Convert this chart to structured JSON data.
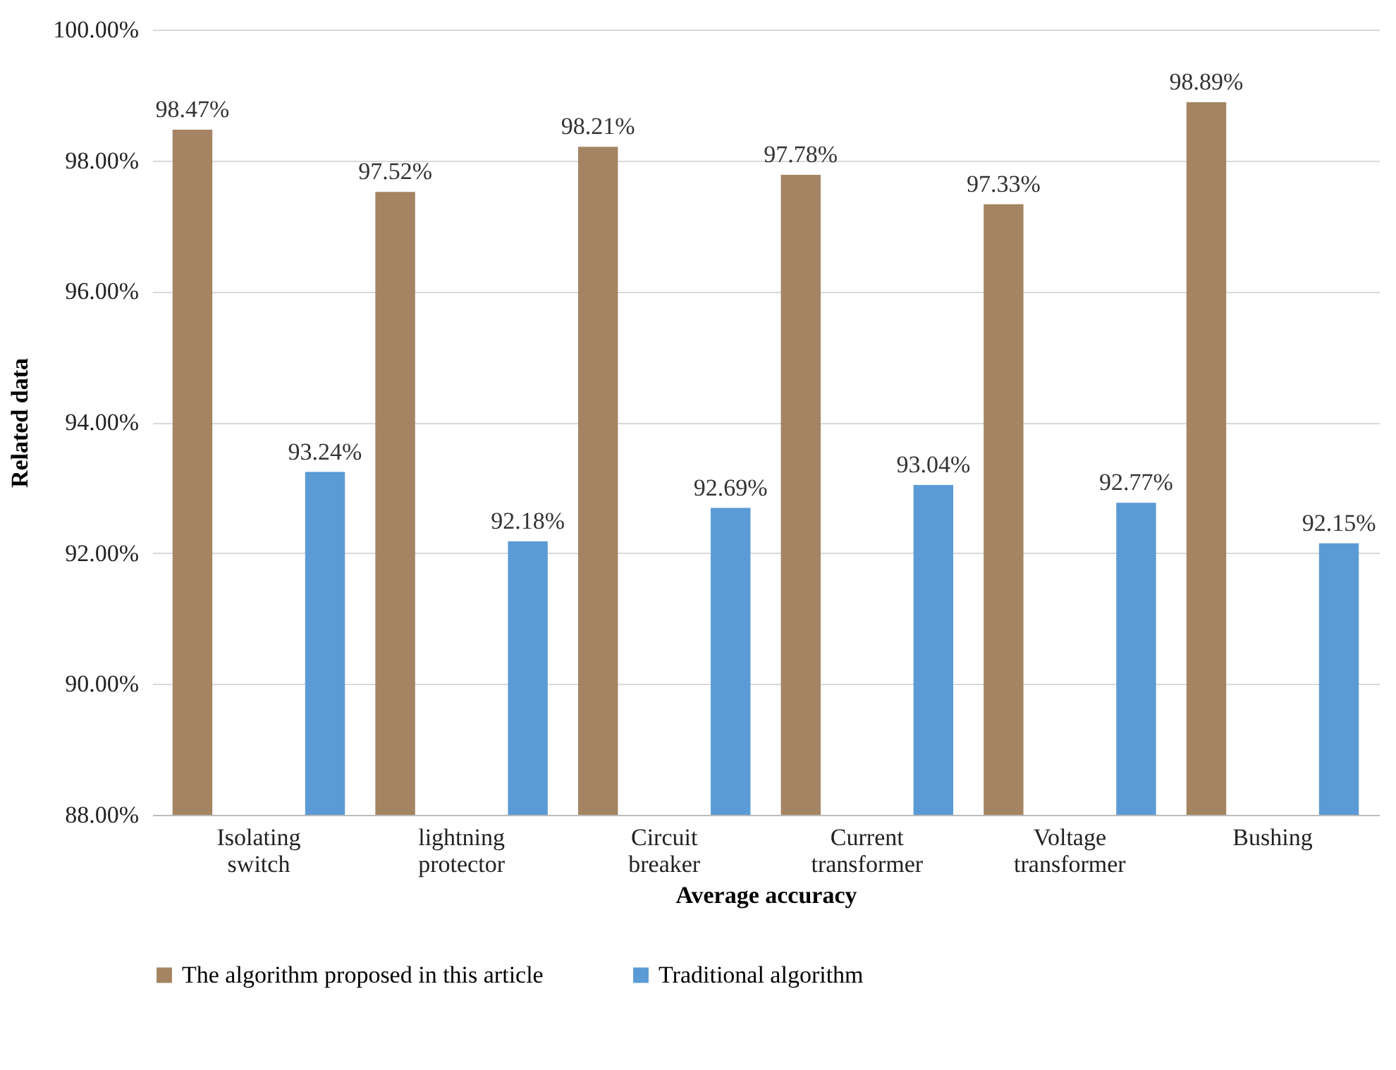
{
  "chart_data": {
    "type": "bar",
    "xlabel": "Average accuracy",
    "ylabel": "Related data",
    "categories": [
      "Isolating switch",
      "lightning protector",
      "Circuit breaker",
      "Current transformer",
      "Voltage transformer",
      "Bushing"
    ],
    "series": [
      {
        "name": "The algorithm proposed in this article",
        "color": "#a48462",
        "values": [
          98.47,
          97.52,
          98.21,
          97.78,
          97.33,
          98.89
        ],
        "value_labels": [
          "98.47%",
          "97.52%",
          "98.21%",
          "97.78%",
          "97.33%",
          "98.89%"
        ]
      },
      {
        "name": "Traditional algorithm",
        "color": "#5b9bd5",
        "values": [
          93.24,
          92.18,
          92.69,
          93.04,
          92.77,
          92.15
        ],
        "value_labels": [
          "93.24%",
          "92.18%",
          "92.69%",
          "93.04%",
          "92.77%",
          "92.15%"
        ]
      }
    ],
    "ylim": [
      88,
      100
    ],
    "yticks": [
      {
        "value": 88,
        "label": "88.00%"
      },
      {
        "value": 90,
        "label": "90.00%"
      },
      {
        "value": 92,
        "label": "92.00%"
      },
      {
        "value": 94,
        "label": "94.00%"
      },
      {
        "value": 96,
        "label": "96.00%"
      },
      {
        "value": 98,
        "label": "98.00%"
      },
      {
        "value": 100,
        "label": "100.00%"
      }
    ],
    "grid": "y",
    "legend": "bottom"
  }
}
